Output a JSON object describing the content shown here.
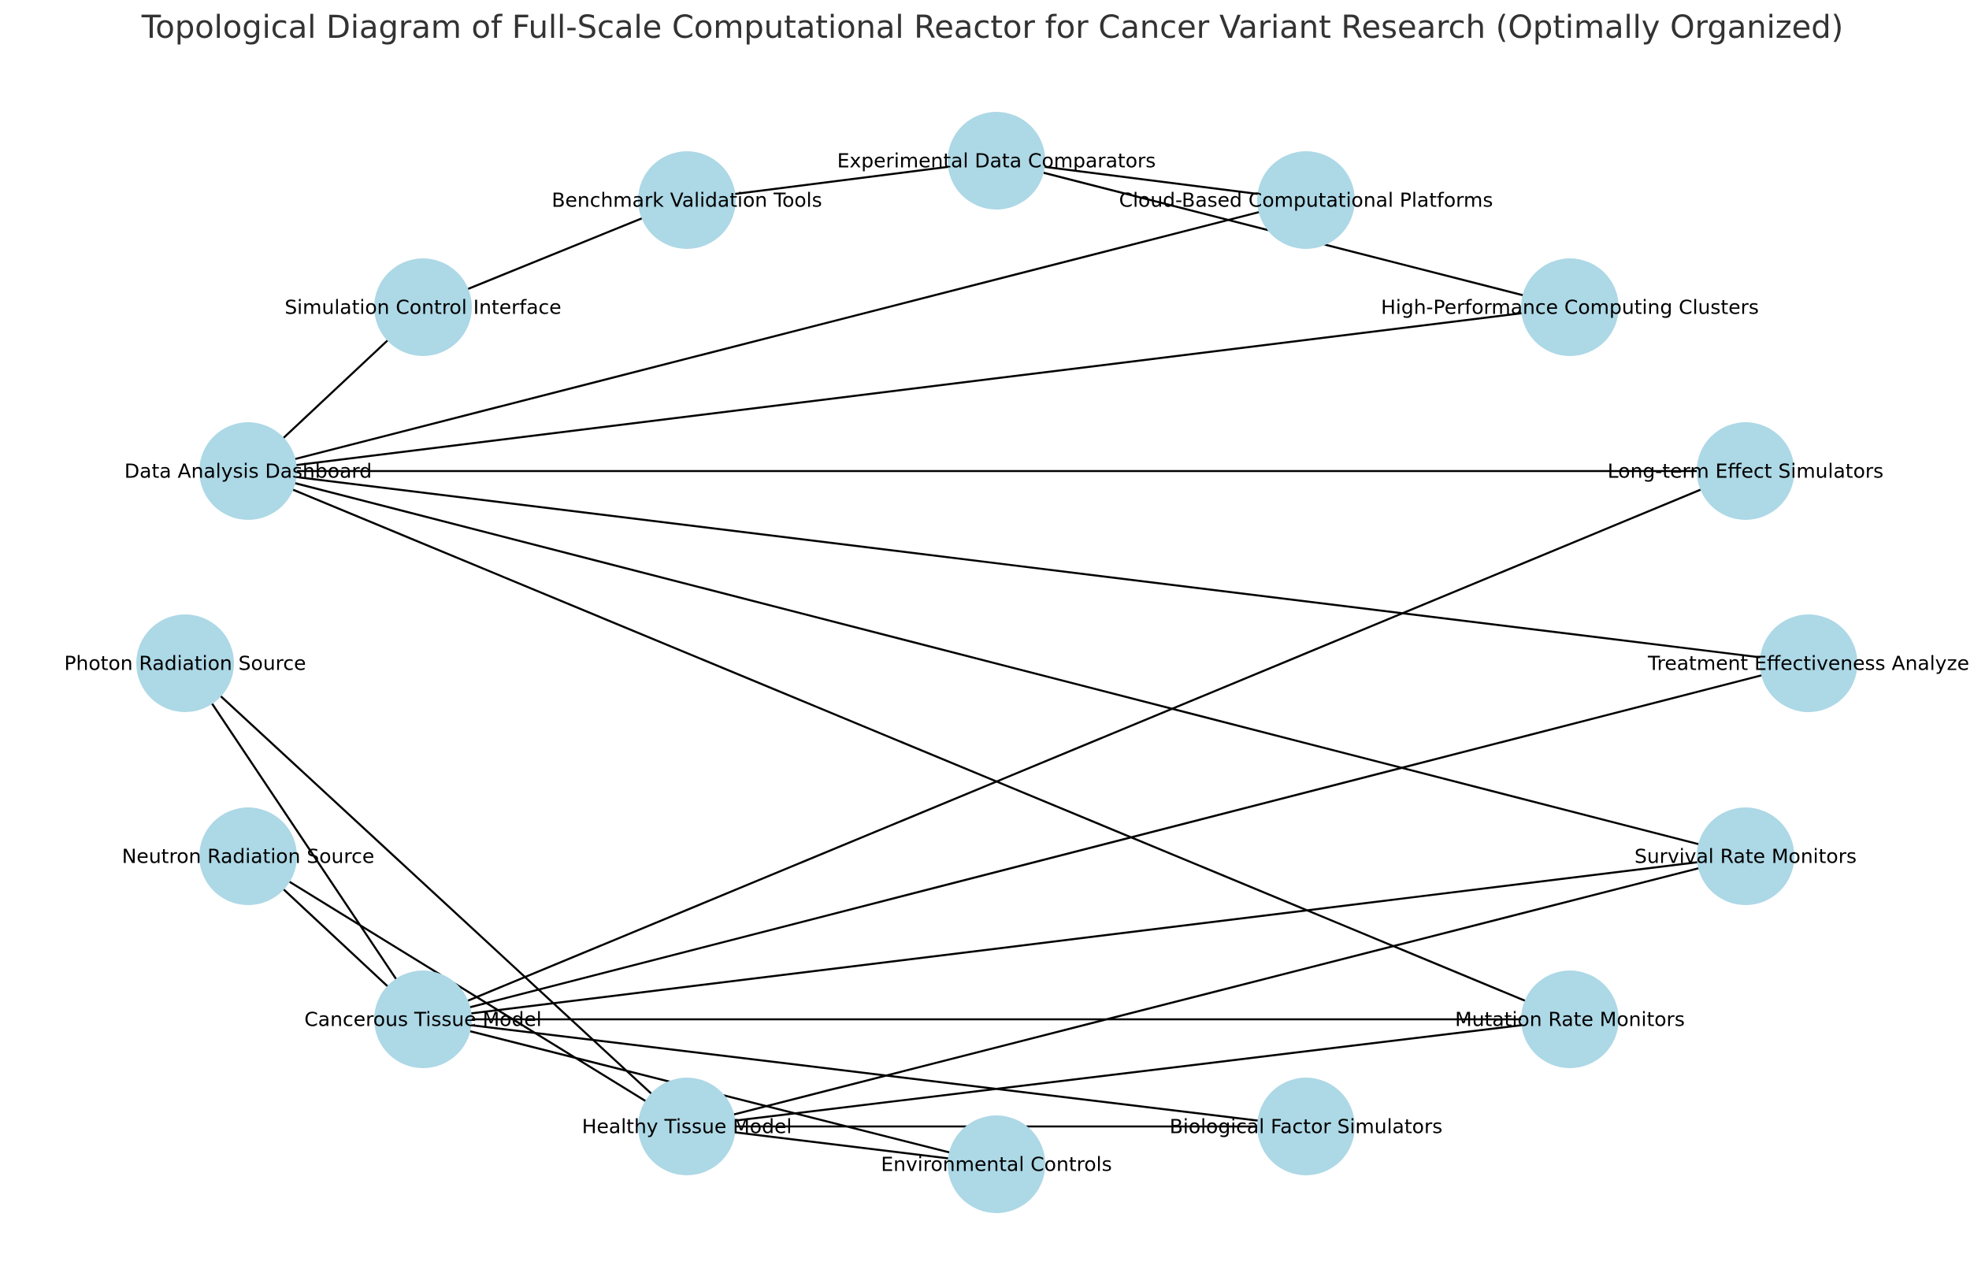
{
  "title": "Topological Diagram of Full-Scale Computational Reactor for Cancer Variant Research (Optimally Organized)",
  "node_color": "#add8e6",
  "edge_color": "#000000",
  "nodes": [
    {
      "id": "photon",
      "label": "Photon Radiation Source"
    },
    {
      "id": "neutron",
      "label": "Neutron Radiation Source"
    },
    {
      "id": "cancer",
      "label": "Cancerous Tissue Model"
    },
    {
      "id": "healthy",
      "label": "Healthy Tissue Model"
    },
    {
      "id": "env",
      "label": "Environmental Controls"
    },
    {
      "id": "bio",
      "label": "Biological Factor Simulators"
    },
    {
      "id": "mutation",
      "label": "Mutation Rate Monitors"
    },
    {
      "id": "survival",
      "label": "Survival Rate Monitors"
    },
    {
      "id": "treatment",
      "label": "Treatment Effectiveness Analyze"
    },
    {
      "id": "longterm",
      "label": "Long-term Effect Simulators"
    },
    {
      "id": "hpc",
      "label": "High-Performance Computing Clusters"
    },
    {
      "id": "cloud",
      "label": "Cloud-Based Computational Platforms"
    },
    {
      "id": "experimental",
      "label": "Experimental Data Comparators"
    },
    {
      "id": "benchmark",
      "label": "Benchmark Validation Tools"
    },
    {
      "id": "simctrl",
      "label": "Simulation Control Interface"
    },
    {
      "id": "dashboard",
      "label": "Data Analysis Dashboard"
    }
  ],
  "edges": [
    [
      "photon",
      "cancer"
    ],
    [
      "photon",
      "healthy"
    ],
    [
      "neutron",
      "cancer"
    ],
    [
      "neutron",
      "healthy"
    ],
    [
      "cancer",
      "env"
    ],
    [
      "cancer",
      "bio"
    ],
    [
      "cancer",
      "mutation"
    ],
    [
      "cancer",
      "survival"
    ],
    [
      "cancer",
      "treatment"
    ],
    [
      "cancer",
      "longterm"
    ],
    [
      "healthy",
      "env"
    ],
    [
      "healthy",
      "bio"
    ],
    [
      "healthy",
      "mutation"
    ],
    [
      "healthy",
      "survival"
    ],
    [
      "dashboard",
      "mutation"
    ],
    [
      "dashboard",
      "survival"
    ],
    [
      "dashboard",
      "treatment"
    ],
    [
      "dashboard",
      "longterm"
    ],
    [
      "dashboard",
      "hpc"
    ],
    [
      "dashboard",
      "cloud"
    ],
    [
      "dashboard",
      "simctrl"
    ],
    [
      "simctrl",
      "benchmark"
    ],
    [
      "benchmark",
      "experimental"
    ],
    [
      "experimental",
      "cloud"
    ],
    [
      "experimental",
      "hpc"
    ]
  ]
}
